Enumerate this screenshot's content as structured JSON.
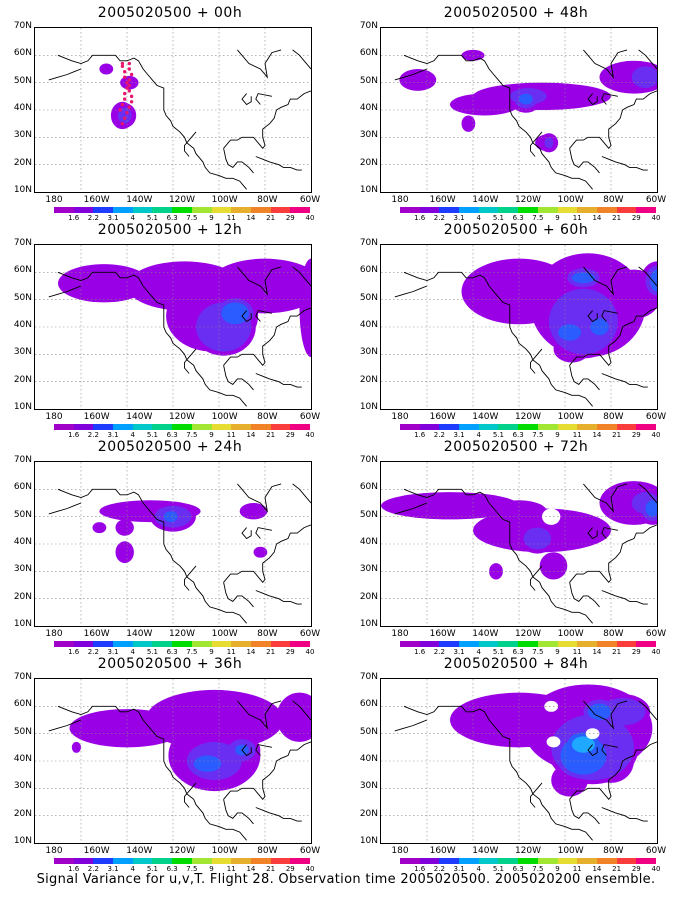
{
  "panels": [
    {
      "title": "2005020500 + 00h",
      "col": 0,
      "row": 0,
      "level": 0
    },
    {
      "title": "2005020500 + 48h",
      "col": 1,
      "row": 0,
      "level": 4
    },
    {
      "title": "2005020500 + 12h",
      "col": 0,
      "row": 1,
      "level": 1
    },
    {
      "title": "2005020500 + 60h",
      "col": 1,
      "row": 1,
      "level": 5
    },
    {
      "title": "2005020500 + 24h",
      "col": 0,
      "row": 2,
      "level": 2
    },
    {
      "title": "2005020500 + 72h",
      "col": 1,
      "row": 2,
      "level": 6
    },
    {
      "title": "2005020500 + 36h",
      "col": 0,
      "row": 3,
      "level": 3
    },
    {
      "title": "2005020500 + 84h",
      "col": 1,
      "row": 3,
      "level": 7
    }
  ],
  "y_ticks": [
    "70N",
    "60N",
    "50N",
    "40N",
    "30N",
    "20N",
    "10N"
  ],
  "x_ticks": [
    "180",
    "160W",
    "140W",
    "120W",
    "100W",
    "80W",
    "60W"
  ],
  "colorbar": {
    "labels": [
      "1.6",
      "2.2",
      "3.1",
      "4",
      "5.1",
      "6.3",
      "7.5",
      "9",
      "11",
      "14",
      "21",
      "29",
      "40"
    ],
    "colors": [
      "#a000c8",
      "#8200dc",
      "#1e3cff",
      "#00a0ff",
      "#00c8c8",
      "#00d28c",
      "#00dc00",
      "#a0e632",
      "#e6dc32",
      "#e6af2d",
      "#f08228",
      "#fa3c3c",
      "#f00082"
    ]
  },
  "fill_colors": {
    "outer": "#9a00e6",
    "mid": "#6a2ef2",
    "inner": "#2a5cff",
    "core": "#1fa8ff",
    "track": "#e8146e"
  },
  "caption": "Signal Variance for u,v,T. Flight 28. Observation time 2005020500. 2005020200 ensemble."
}
